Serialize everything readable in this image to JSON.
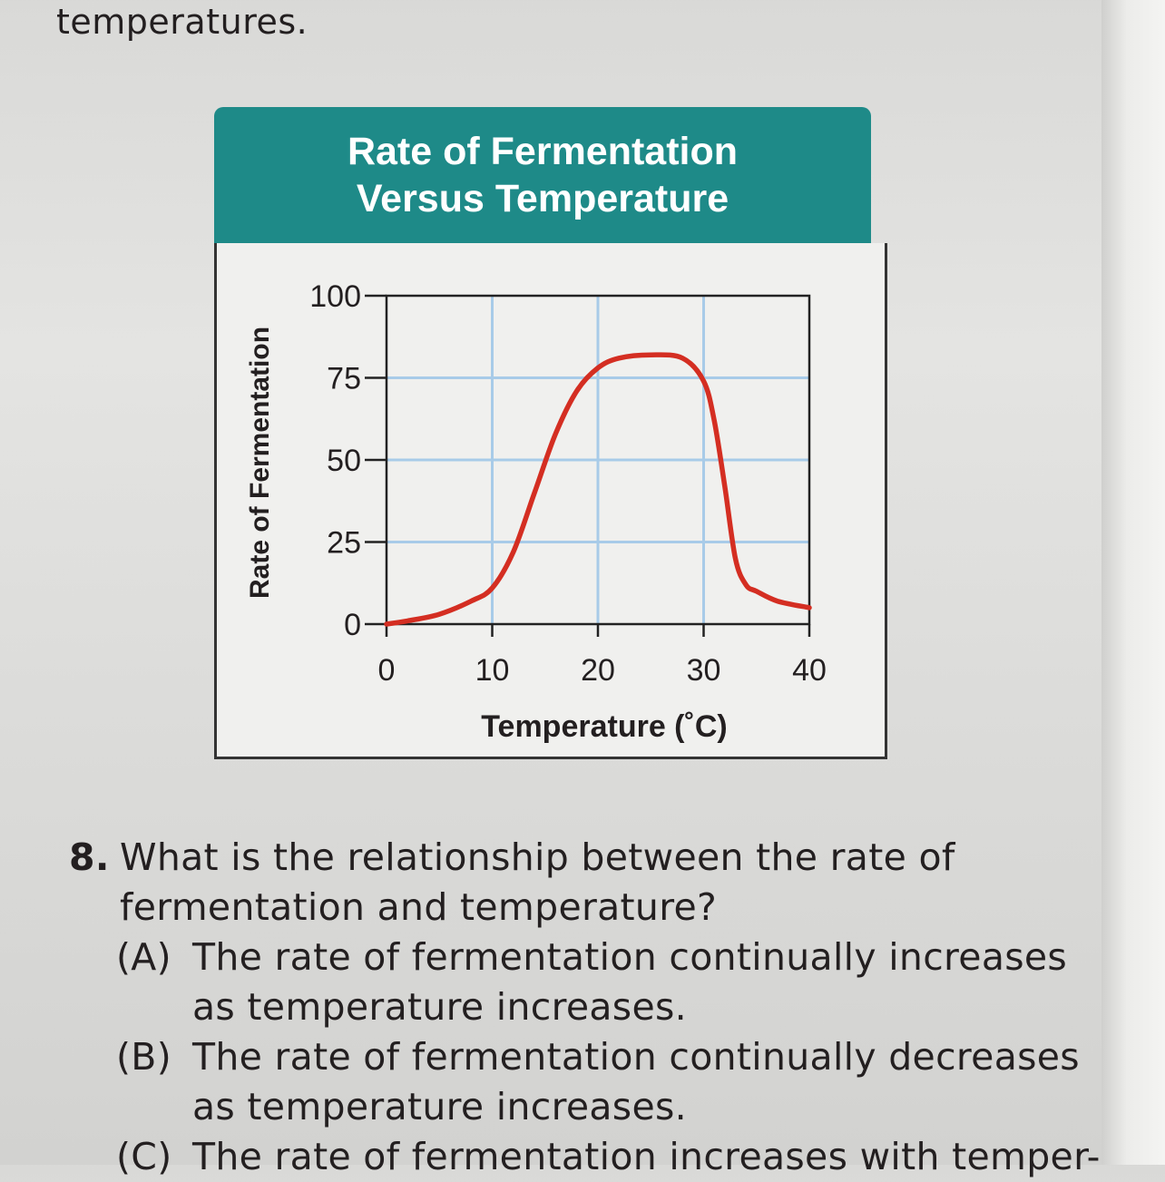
{
  "intro_text": "temperatures.",
  "figure": {
    "title_line1": "Rate of Fermentation",
    "title_line2": "Versus Temperature",
    "header_color": "#1e8a88",
    "curve_color": "#d42e22",
    "grid_color": "#a8cbe8"
  },
  "chart_data": {
    "type": "line",
    "title": "Rate of Fermentation Versus Temperature",
    "xlabel": "Temperature (˚C)",
    "ylabel": "Rate of Fermentation",
    "xlim": [
      0,
      40
    ],
    "ylim": [
      0,
      100
    ],
    "xticks": [
      "0",
      "10",
      "20",
      "30",
      "40"
    ],
    "yticks": [
      "0",
      "25",
      "50",
      "75",
      "100"
    ],
    "grid": true,
    "series": [
      {
        "x": [
          0,
          2,
          5,
          8,
          10,
          12,
          14,
          16,
          18,
          20,
          22,
          25,
          28,
          30,
          31,
          32,
          33,
          34,
          35,
          37,
          40
        ],
        "y": [
          0,
          1,
          3,
          7,
          11,
          22,
          40,
          58,
          71,
          78,
          81,
          82,
          81,
          74,
          62,
          42,
          20,
          12,
          10,
          7,
          5
        ]
      }
    ]
  },
  "question": {
    "number": "8.",
    "text_line1": "What is the relationship between the rate of",
    "text_line2": "fermentation and temperature?",
    "options": [
      {
        "letter": "(A)",
        "line1": "The rate of fermentation continually increases",
        "line2": "as temperature increases."
      },
      {
        "letter": "(B)",
        "line1": "The rate of fermentation continually decreases",
        "line2": "as temperature increases."
      },
      {
        "letter": "(C)",
        "line1": "The rate of fermentation increases with temper-",
        "line2": ""
      }
    ]
  }
}
